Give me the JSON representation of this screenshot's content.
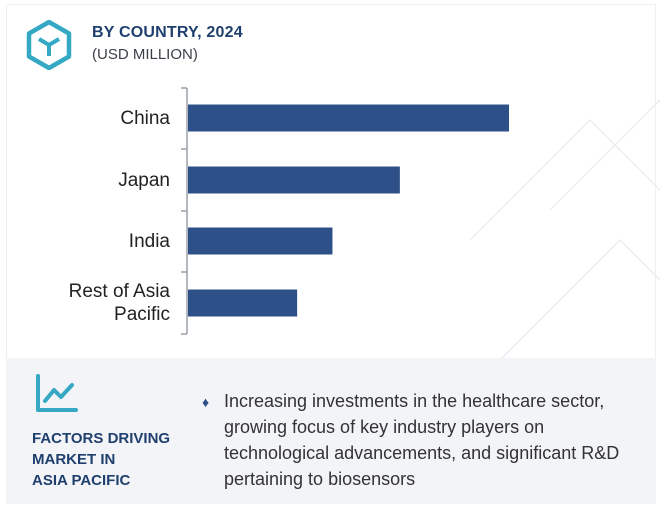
{
  "header": {
    "title": "BY COUNTRY, 2024",
    "subtitle": "(USD MILLION)",
    "logo_icon": "cube-logo-icon"
  },
  "chart_data": {
    "type": "bar",
    "orientation": "horizontal",
    "categories": [
      "China",
      "Japan",
      "India",
      "Rest of Asia\nPacific"
    ],
    "values": [
      100,
      66,
      45,
      34
    ],
    "bar_color": "#2d5088",
    "grid": false,
    "xaxis_visible": false
  },
  "factors": {
    "icon": "trend-line-icon",
    "title_lines": [
      "FACTORS DRIVING",
      "MARKET IN",
      "ASIA PACIFIC"
    ],
    "bullet_icon": "diamond-bullet-icon",
    "text": "Increasing investments in the healthcare sector, growing focus of key industry players on technological advancements, and significant R&D pertaining to biosensors"
  },
  "colors": {
    "accent": "#1f3f6e",
    "bar": "#2d5088",
    "logo": "#35a9c4",
    "footer_bg": "#f3f4f7"
  }
}
